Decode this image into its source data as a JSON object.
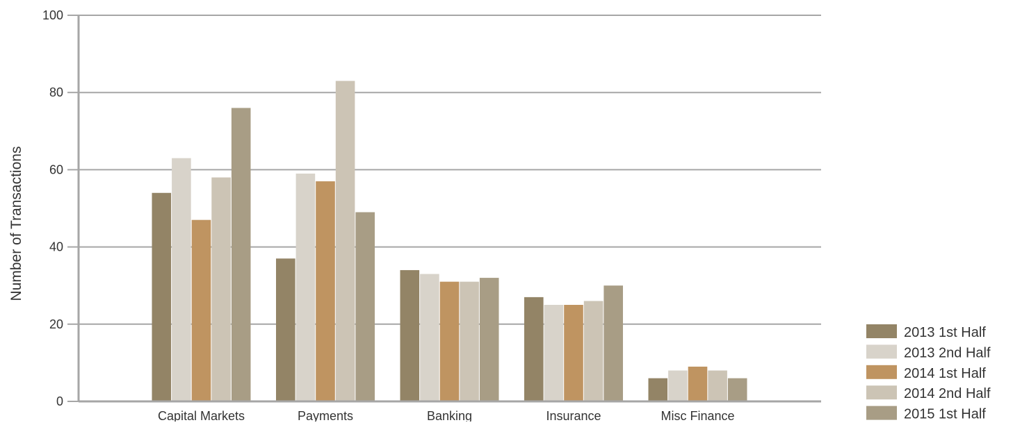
{
  "chart_data": {
    "type": "bar",
    "title": "",
    "xlabel": "",
    "ylabel": "Number of Transactions",
    "ylim": [
      0,
      100
    ],
    "yticks": [
      0,
      20,
      40,
      60,
      80,
      100
    ],
    "grid": true,
    "legend_position": "bottom-right",
    "categories": [
      "Capital Markets",
      "Payments",
      "Banking",
      "Insurance",
      "Misc Finance"
    ],
    "series": [
      {
        "name": "2013 1st Half",
        "color": "#938466",
        "values": [
          54,
          37,
          34,
          27,
          6
        ]
      },
      {
        "name": "2013 2nd Half",
        "color": "#d8d3ca",
        "values": [
          63,
          59,
          33,
          25,
          8
        ]
      },
      {
        "name": "2014 1st Half",
        "color": "#bf9461",
        "values": [
          47,
          57,
          31,
          25,
          9
        ]
      },
      {
        "name": "2014 2nd Half",
        "color": "#ccc4b5",
        "values": [
          58,
          83,
          31,
          26,
          8
        ]
      },
      {
        "name": "2015 1st Half",
        "color": "#a89d85",
        "values": [
          76,
          49,
          32,
          30,
          6
        ]
      }
    ],
    "colors": {
      "axis": "#a6a6a6",
      "grid": "#a6a6a6",
      "text": "#333333"
    }
  }
}
